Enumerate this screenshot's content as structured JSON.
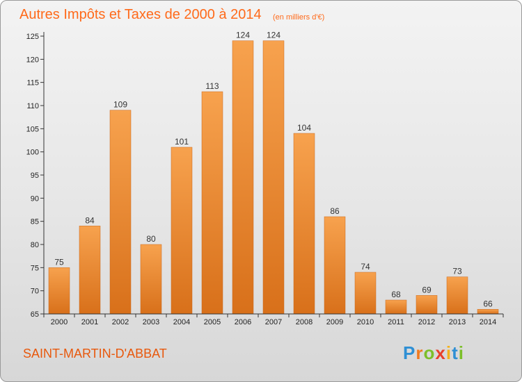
{
  "chart_data": {
    "type": "bar",
    "title": "Autres Impôts et Taxes de 2000 à 2014",
    "subtitle": "(en milliers d'€)",
    "categories": [
      "2000",
      "2001",
      "2002",
      "2003",
      "2004",
      "2005",
      "2006",
      "2007",
      "2008",
      "2009",
      "2010",
      "2011",
      "2012",
      "2013",
      "2014"
    ],
    "values": [
      75,
      84,
      109,
      80,
      101,
      113,
      124,
      124,
      104,
      86,
      74,
      68,
      69,
      73,
      66
    ],
    "ylim": [
      65,
      125
    ],
    "yticks": [
      65,
      70,
      75,
      80,
      85,
      90,
      95,
      100,
      105,
      110,
      115,
      120,
      125
    ],
    "grid": false,
    "bar_color": "#f08a2c"
  },
  "footer": {
    "place": "SAINT-MARTIN-D'ABBAT",
    "logo_letters": [
      "P",
      "r",
      "o",
      "x",
      "i",
      "t",
      "i"
    ],
    "logo_colors": [
      "#2e8fd4",
      "#f07a1e",
      "#7cbf2a",
      "#e8402a",
      "#f5b21b",
      "#2e8fd4",
      "#7cbf2a"
    ]
  }
}
